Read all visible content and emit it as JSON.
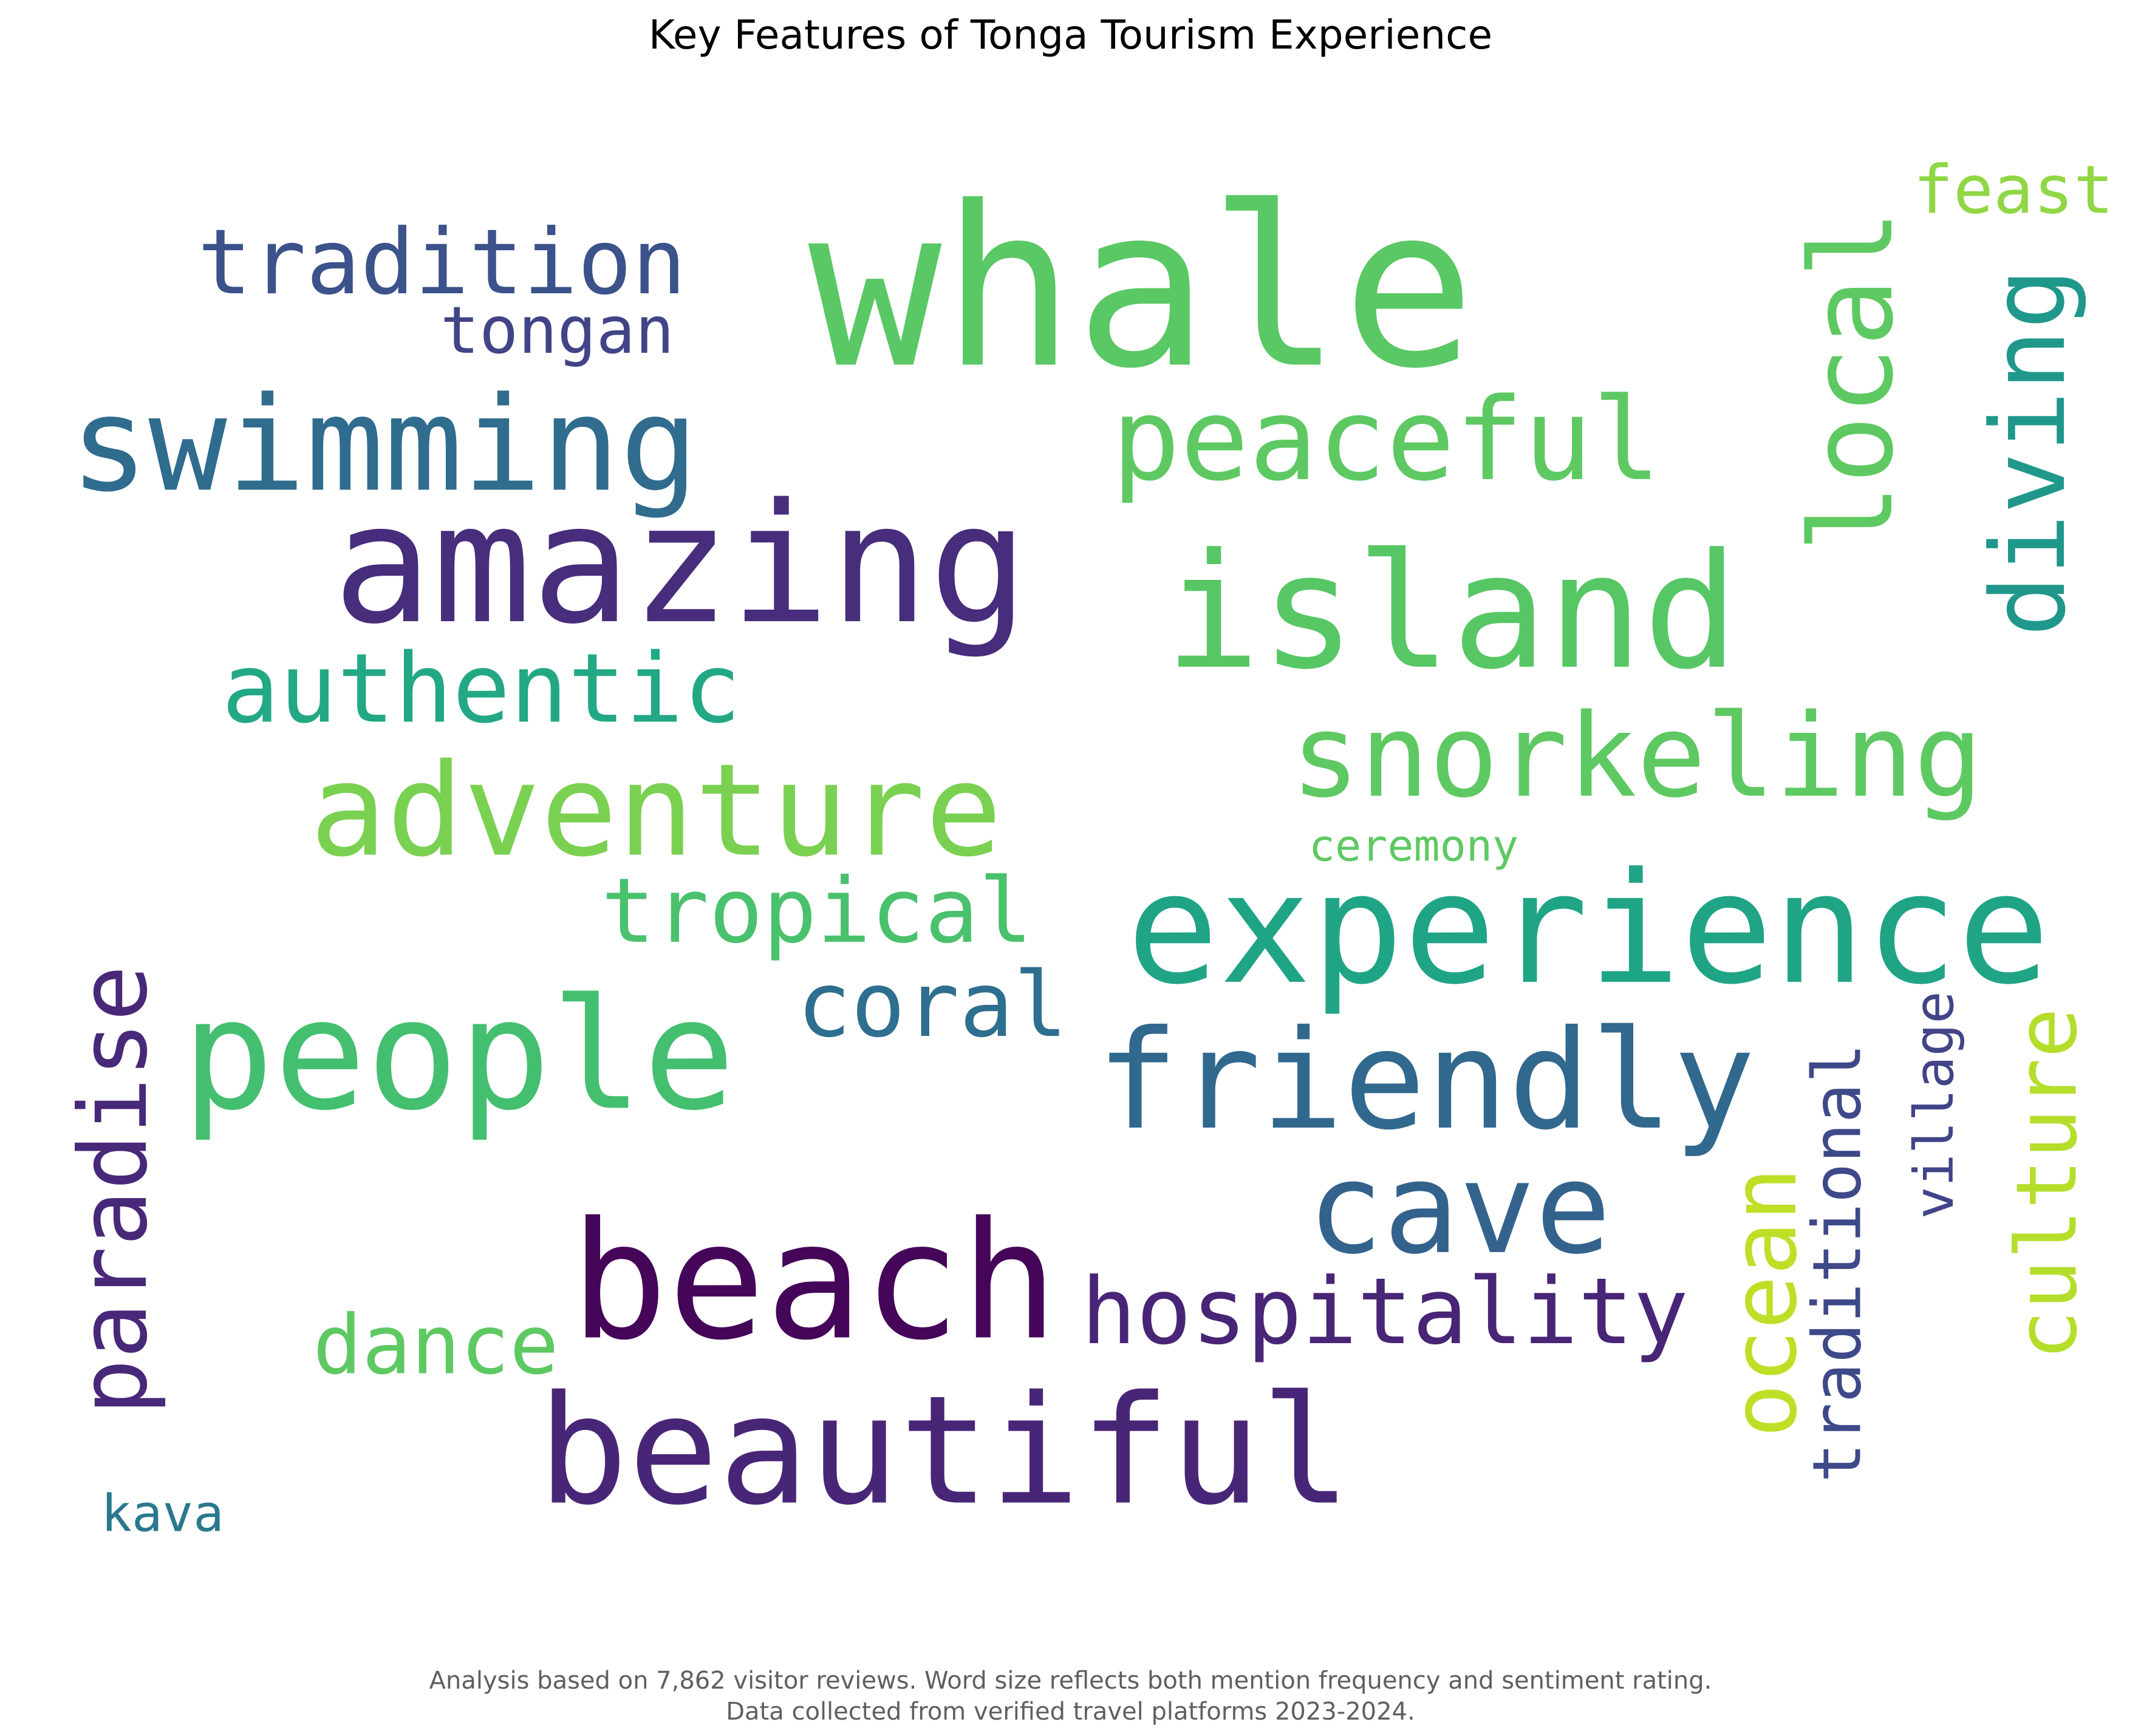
{
  "chart_data": {
    "type": "wordcloud",
    "title": "Key Features of Tonga Tourism Experience",
    "caption_lines": [
      "Analysis based on 7,862 visitor reviews. Word size reflects both mention frequency and sentiment rating.",
      "Data collected from verified travel platforms 2023-2024."
    ],
    "colormap": "viridis",
    "words": [
      {
        "text": "whale",
        "color": "#5ac864",
        "orientation": "horizontal"
      },
      {
        "text": "island",
        "color": "#57c766",
        "orientation": "horizontal"
      },
      {
        "text": "amazing",
        "color": "#472d7b",
        "orientation": "horizontal"
      },
      {
        "text": "beach",
        "color": "#450559",
        "orientation": "horizontal"
      },
      {
        "text": "beautiful",
        "color": "#482677",
        "orientation": "horizontal"
      },
      {
        "text": "people",
        "color": "#44bf70",
        "orientation": "horizontal"
      },
      {
        "text": "experience",
        "color": "#20a486",
        "orientation": "horizontal"
      },
      {
        "text": "friendly",
        "color": "#31688e",
        "orientation": "horizontal"
      },
      {
        "text": "adventure",
        "color": "#7ad151",
        "orientation": "horizontal"
      },
      {
        "text": "swimming",
        "color": "#2f6c8e",
        "orientation": "horizontal"
      },
      {
        "text": "cave",
        "color": "#33638d",
        "orientation": "horizontal"
      },
      {
        "text": "peaceful",
        "color": "#5ec962",
        "orientation": "horizontal"
      },
      {
        "text": "snorkeling",
        "color": "#5ec962",
        "orientation": "horizontal"
      },
      {
        "text": "hospitality",
        "color": "#482576",
        "orientation": "horizontal"
      },
      {
        "text": "tradition",
        "color": "#3b528b",
        "orientation": "horizontal"
      },
      {
        "text": "authentic",
        "color": "#22a884",
        "orientation": "horizontal"
      },
      {
        "text": "tropical",
        "color": "#4ac16d",
        "orientation": "horizontal"
      },
      {
        "text": "coral",
        "color": "#2e6e8e",
        "orientation": "horizontal"
      },
      {
        "text": "dance",
        "color": "#5ec962",
        "orientation": "horizontal"
      },
      {
        "text": "tongan",
        "color": "#414487",
        "orientation": "horizontal"
      },
      {
        "text": "feast",
        "color": "#8fd744",
        "orientation": "horizontal"
      },
      {
        "text": "ceremony",
        "color": "#5ec962",
        "orientation": "horizontal"
      },
      {
        "text": "kava",
        "color": "#2a788e",
        "orientation": "horizontal"
      },
      {
        "text": "paradise",
        "color": "#482878",
        "orientation": "vertical"
      },
      {
        "text": "local",
        "color": "#5ec962",
        "orientation": "vertical"
      },
      {
        "text": "diving",
        "color": "#1f988b",
        "orientation": "vertical"
      },
      {
        "text": "ocean",
        "color": "#bddf26",
        "orientation": "vertical"
      },
      {
        "text": "traditional",
        "color": "#3e4989",
        "orientation": "vertical"
      },
      {
        "text": "village",
        "color": "#414487",
        "orientation": "vertical"
      },
      {
        "text": "culture",
        "color": "#b5de2b",
        "orientation": "vertical"
      }
    ]
  }
}
